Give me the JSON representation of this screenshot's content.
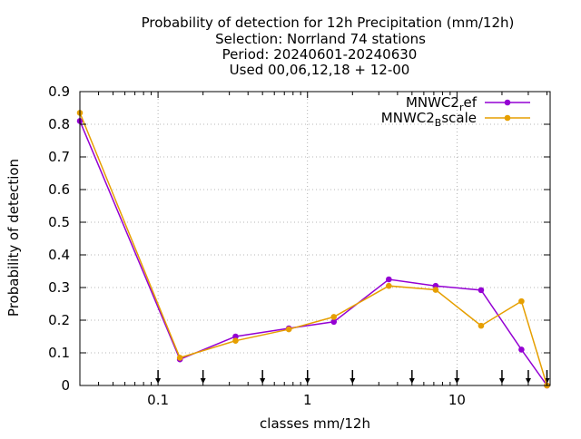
{
  "chart_data": {
    "type": "line",
    "title_lines": [
      "Probability of detection  for 12h Precipitation (mm/12h)",
      "Selection: Norrland     74 stations",
      "Period: 20240601-20240630",
      "Used 00,06,12,18 + 12-00"
    ],
    "xlabel": "classes mm/12h",
    "ylabel": "Probability of detection",
    "x_scale": "log",
    "xlim": [
      0.03,
      42
    ],
    "ylim": [
      0,
      0.9
    ],
    "y_ticks": [
      0,
      0.1,
      0.2,
      0.3,
      0.4,
      0.5,
      0.6,
      0.7,
      0.8,
      0.9
    ],
    "y_tick_labels": [
      "0",
      "0.1",
      "0.2",
      "0.3",
      "0.4",
      "0.5",
      "0.6",
      "0.7",
      "0.8",
      "0.9"
    ],
    "x_major_ticks": [
      0.1,
      1,
      10
    ],
    "x_tick_labels": [
      "0.1",
      "1",
      "10"
    ],
    "class_limits": [
      0.1,
      0.2,
      0.5,
      1,
      2,
      5,
      10,
      20,
      30,
      40
    ],
    "grid": true,
    "legend_position": "top-right",
    "series": [
      {
        "name_base": "MNWC2",
        "name_sub": "r",
        "name_rest": "ef",
        "color": "#9400d3",
        "x": [
          0.03,
          0.14,
          0.33,
          0.75,
          1.5,
          3.5,
          7.2,
          14.5,
          27,
          40
        ],
        "y": [
          0.81,
          0.08,
          0.15,
          0.175,
          0.195,
          0.325,
          0.305,
          0.292,
          0.11,
          0.0
        ]
      },
      {
        "name_base": "MNWC2",
        "name_sub": "B",
        "name_rest": "scale",
        "color": "#e69f00",
        "x": [
          0.03,
          0.14,
          0.33,
          0.75,
          1.5,
          3.5,
          7.2,
          14.5,
          27,
          40
        ],
        "y": [
          0.835,
          0.085,
          0.137,
          0.172,
          0.21,
          0.305,
          0.293,
          0.183,
          0.258,
          0.0
        ]
      }
    ]
  }
}
